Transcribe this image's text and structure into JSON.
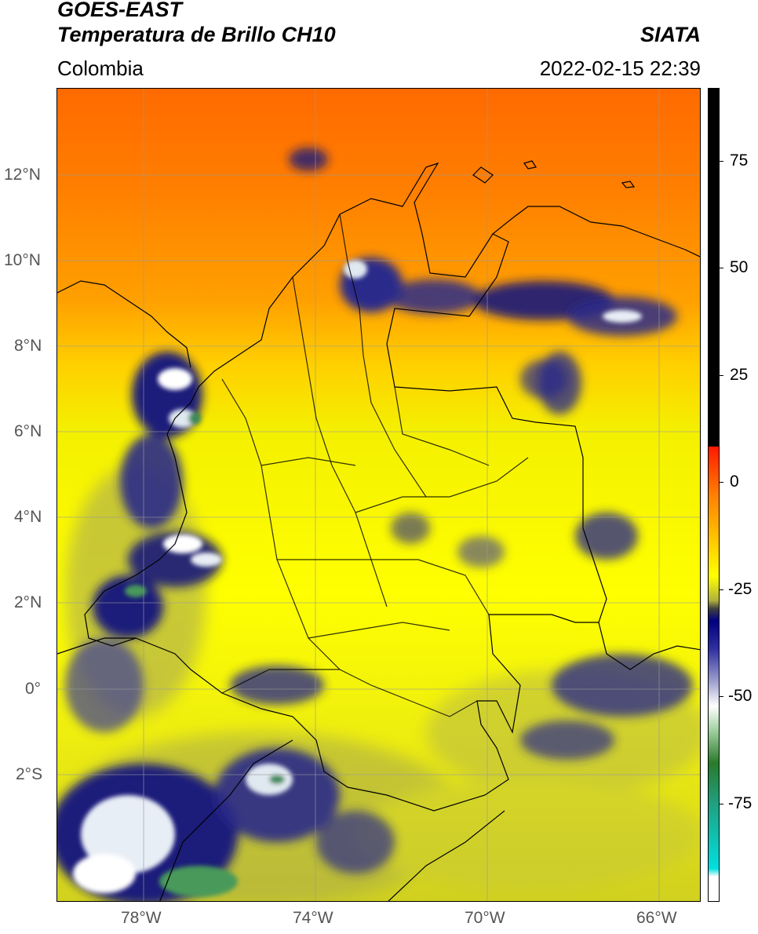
{
  "header": {
    "satellite": "GOES-EAST",
    "product": "Temperatura de Brillo CH10",
    "org": "SIATA",
    "region": "Colombia",
    "timestamp": "2022-02-15 22:39"
  },
  "map": {
    "lat_ticks": [
      "12°N",
      "10°N",
      "8°N",
      "6°N",
      "4°N",
      "2°N",
      "0°",
      "2°S"
    ],
    "lon_ticks": [
      "78°W",
      "74°W",
      "70°W",
      "66°W"
    ]
  },
  "colorbar": {
    "labels": [
      "75",
      "50",
      "25",
      "0",
      "-25",
      "-50",
      "-75"
    ]
  },
  "colors": {
    "orange": "#ff7a00",
    "yellow": "#ffff00",
    "navy": "#1a1a7a",
    "white": "#ffffff",
    "green": "#3a8a3a",
    "cyan": "#00e0e0",
    "red": "#ff0000"
  }
}
